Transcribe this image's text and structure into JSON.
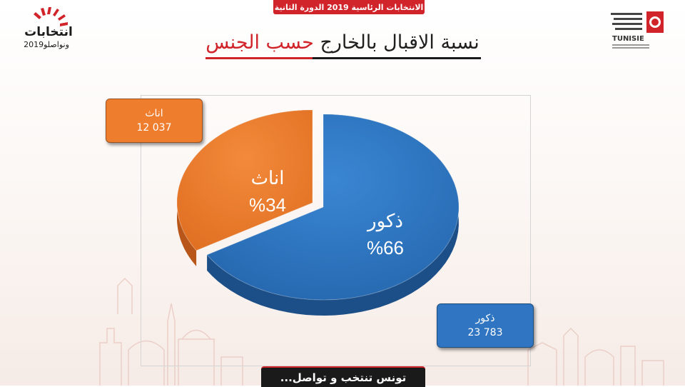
{
  "header": {
    "banner": "الانتخابات الرئاسية 2019 الدورة الثانية",
    "title_part1": "نسبة الاقبال بالخارج",
    "title_part2": "حسب الجنس"
  },
  "logos": {
    "left_word1": "انتخابات",
    "left_word2": "ونواصلو2019",
    "right_text": "TUNISIE"
  },
  "footer": {
    "banner": "تونس تنتخب و تواصل..."
  },
  "colors": {
    "male": "#2f75c1",
    "female": "#ee7d2e",
    "accent": "#d0232a"
  },
  "chart_data": {
    "type": "pie",
    "title": "",
    "categories": [
      "ذكور",
      "اناث"
    ],
    "values": [
      23783,
      12037
    ],
    "percent_labels": [
      "%66",
      "%34"
    ],
    "value_labels": [
      "23 783",
      "12 037"
    ],
    "exploded": [
      "اناث"
    ]
  }
}
